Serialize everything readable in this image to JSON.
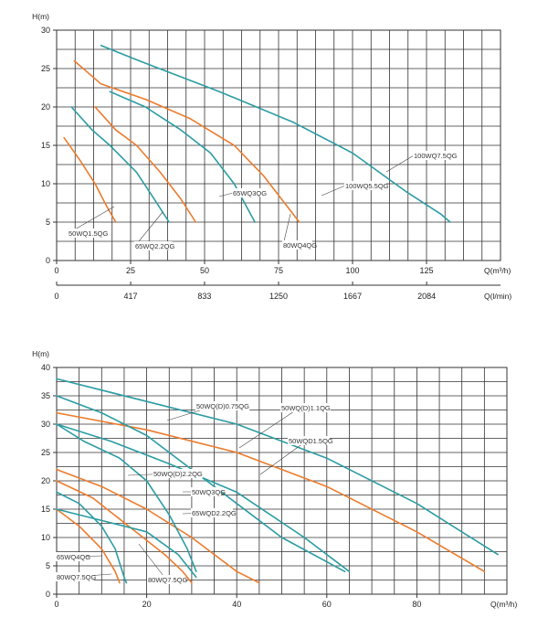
{
  "colors": {
    "teal": "#2b9ca3",
    "orange": "#ec7b2c",
    "grid": "#333333",
    "text": "#222222"
  },
  "chart_data": [
    {
      "type": "line",
      "title": "",
      "xlabel": "Q(m³/h)",
      "ylabel": "H(m)",
      "xlim": [
        0,
        150
      ],
      "ylim": [
        0,
        30
      ],
      "x_ticks": [
        "0",
        "25",
        "50",
        "75",
        "100",
        "125"
      ],
      "y_ticks": [
        "0",
        "5",
        "10",
        "15",
        "20",
        "25",
        "30"
      ],
      "secondary_x_axis": {
        "label": "Q(l/min)",
        "ticks": [
          "0",
          "417",
          "833",
          "1250",
          "1667",
          "2084"
        ]
      },
      "series": [
        {
          "name": "50WQ1.5QG",
          "color": "orange",
          "points": [
            [
              2.5,
              16
            ],
            [
              8,
              13
            ],
            [
              13,
              10
            ],
            [
              17,
              7
            ],
            [
              20,
              5
            ]
          ]
        },
        {
          "name": "65WQ2.2QG",
          "color": "teal",
          "points": [
            [
              5,
              20
            ],
            [
              12,
              17
            ],
            [
              18,
              15
            ],
            [
              27,
              11.5
            ],
            [
              33,
              8
            ],
            [
              38,
              5
            ]
          ]
        },
        {
          "name": "65WQ3QG",
          "color": "orange",
          "points": [
            [
              13,
              20
            ],
            [
              20,
              17
            ],
            [
              27,
              15
            ],
            [
              35,
              11.5
            ],
            [
              42,
              8
            ],
            [
              47,
              5
            ]
          ]
        },
        {
          "name": "80WQ4QG",
          "color": "teal",
          "points": [
            [
              18,
              22
            ],
            [
              30,
              20
            ],
            [
              42,
              17
            ],
            [
              52,
              14
            ],
            [
              60,
              10
            ],
            [
              67,
              5
            ]
          ]
        },
        {
          "name": "100WQ5.5QG",
          "color": "orange",
          "points": [
            [
              6,
              26
            ],
            [
              15,
              23
            ],
            [
              30,
              21
            ],
            [
              45,
              18.5
            ],
            [
              60,
              15
            ],
            [
              70,
              11
            ],
            [
              79,
              6.5
            ],
            [
              82,
              5
            ]
          ]
        },
        {
          "name": "100WQ7.5QG",
          "color": "teal",
          "points": [
            [
              15,
              28
            ],
            [
              28,
              26
            ],
            [
              55,
              22
            ],
            [
              80,
              18
            ],
            [
              100,
              14
            ],
            [
              118,
              9
            ],
            [
              130,
              6
            ],
            [
              133,
              5
            ]
          ]
        }
      ],
      "annotations": [
        "50WQ1.5QG",
        "65WQ2.2QG",
        "65WQ3QG",
        "80WQ4QG",
        "100WQ5.5QG",
        "100WQ7.5QG"
      ]
    },
    {
      "type": "line",
      "title": "",
      "xlabel": "Q(m³/h)",
      "ylabel": "H(m)",
      "xlim": [
        0,
        100
      ],
      "ylim": [
        0,
        40
      ],
      "x_ticks": [
        "0",
        "20",
        "40",
        "60",
        "80"
      ],
      "y_ticks": [
        "0",
        "5",
        "10",
        "15",
        "20",
        "25",
        "30",
        "35",
        "40"
      ],
      "series": [
        {
          "name": "50WQ(D)0.75QG",
          "color": "orange",
          "points": [
            [
              0,
              15
            ],
            [
              5,
              12
            ],
            [
              10,
              8
            ],
            [
              13,
              4
            ],
            [
              14,
              2
            ]
          ]
        },
        {
          "name": "50WQ(D)1.1QG",
          "color": "teal",
          "points": [
            [
              0,
              18
            ],
            [
              5,
              16
            ],
            [
              10,
              12
            ],
            [
              13,
              8
            ],
            [
              15,
              3
            ],
            [
              15.5,
              2
            ]
          ]
        },
        {
          "name": "50WQD1.5QG",
          "color": "orange",
          "points": [
            [
              0,
              20
            ],
            [
              8,
              17
            ],
            [
              16,
              12
            ],
            [
              24,
              7
            ],
            [
              28,
              4
            ],
            [
              30,
              2
            ]
          ]
        },
        {
          "name": "50WQ(D)2.2QG",
          "color": "teal",
          "points": [
            [
              0,
              15
            ],
            [
              10,
              13
            ],
            [
              20,
              11
            ],
            [
              27,
              7
            ],
            [
              30,
              4
            ],
            [
              31,
              3
            ]
          ]
        },
        {
          "name": "50WQ3QG",
          "color": "orange",
          "points": [
            [
              0,
              22
            ],
            [
              10,
              19
            ],
            [
              20,
              15
            ],
            [
              30,
              10
            ],
            [
              40,
              4
            ],
            [
              45,
              2
            ]
          ]
        },
        {
          "name": "65WQD2.2QG",
          "color": "teal",
          "points": [
            [
              0,
              30
            ],
            [
              6,
              27
            ],
            [
              14,
              24
            ],
            [
              20,
              20
            ],
            [
              25,
              14
            ],
            [
              29,
              8
            ],
            [
              31,
              4
            ]
          ]
        },
        {
          "name": "65WQ4QG",
          "color": "teal",
          "points": [
            [
              0,
              30
            ],
            [
              12,
              27
            ],
            [
              25,
              23
            ],
            [
              40,
              18
            ],
            [
              55,
              10
            ],
            [
              65,
              4
            ]
          ]
        },
        {
          "name": "80WQ7.5QG",
          "color": "orange",
          "points": [
            [
              0,
              32
            ],
            [
              20,
              29
            ],
            [
              40,
              25
            ],
            [
              60,
              19
            ],
            [
              80,
              11
            ],
            [
              95,
              4
            ]
          ]
        },
        {
          "name": "80WQ7.5QG",
          "color": "teal",
          "points": [
            [
              0,
              38
            ],
            [
              20,
              34
            ],
            [
              40,
              30
            ],
            [
              60,
              24
            ],
            [
              80,
              16
            ],
            [
              98,
              7
            ]
          ]
        },
        {
          "name": "65WQD2.2QG",
          "color": "teal",
          "points": [
            [
              0,
              35
            ],
            [
              10,
              32
            ],
            [
              20,
              28
            ],
            [
              30,
              22
            ],
            [
              40,
              16
            ],
            [
              50,
              10
            ],
            [
              64,
              4
            ]
          ]
        }
      ],
      "annotations": [
        "65WQ4QG",
        "80WQ7.5QG",
        "80WQ7.5QG",
        "50WQ(D)2.2QG",
        "50WQ3QG",
        "65WQD2.2QG",
        "50WQ(D)0.75QG",
        "50WQ(D)1.1QG",
        "50WQD1.5QG"
      ]
    }
  ]
}
